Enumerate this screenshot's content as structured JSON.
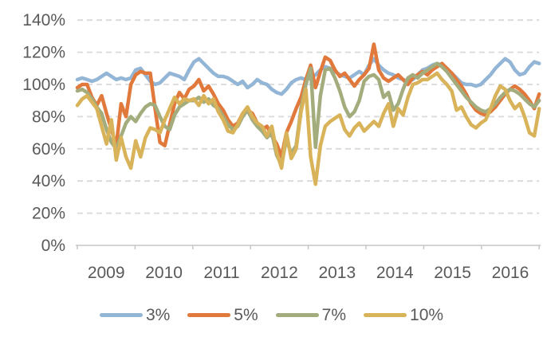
{
  "chart_data": {
    "type": "line",
    "title": "",
    "x_axis": {
      "tick_years": [
        "2009",
        "2010",
        "2011",
        "2012",
        "2013",
        "2014",
        "2015",
        "2016"
      ],
      "points_per_year": 12,
      "n_points": 96
    },
    "y_axis": {
      "tick_labels": [
        "0%",
        "20%",
        "40%",
        "60%",
        "80%",
        "100%",
        "120%",
        "140%"
      ],
      "min": 0,
      "max": 140,
      "step": 20,
      "unit": "%"
    },
    "grid": {
      "show": true,
      "style": "dashed",
      "color": "#D9D9D9"
    },
    "axis_color": "#C6C6C6",
    "label_color": "#595959",
    "legend": {
      "position": "bottom"
    },
    "series": [
      {
        "name": "3%",
        "color": "#93B5D6",
        "values": [
          103,
          104,
          103,
          102,
          103,
          105,
          107,
          105,
          103,
          104,
          103,
          104,
          109,
          110,
          106,
          102,
          100,
          101,
          104,
          107,
          106,
          105,
          103,
          109,
          114,
          116,
          113,
          110,
          107,
          105,
          105,
          104,
          102,
          100,
          102,
          98,
          100,
          103,
          101,
          100,
          97,
          95,
          94,
          97,
          101,
          103,
          104,
          103,
          104,
          106,
          109,
          111,
          110,
          108,
          106,
          105,
          104,
          106,
          108,
          106,
          112,
          116,
          112,
          109,
          107,
          106,
          104,
          103,
          102,
          103,
          106,
          109,
          110,
          112,
          113,
          112,
          110,
          107,
          104,
          101,
          100,
          100,
          99,
          100,
          103,
          106,
          110,
          113,
          116,
          114,
          109,
          106,
          107,
          111,
          114,
          113
        ]
      },
      {
        "name": "5%",
        "color": "#E1793C",
        "values": [
          98,
          100,
          100,
          92,
          87,
          93,
          82,
          72,
          62,
          88,
          80,
          100,
          106,
          108,
          107,
          107,
          85,
          64,
          62,
          75,
          88,
          95,
          91,
          97,
          99,
          103,
          96,
          99,
          94,
          88,
          84,
          78,
          74,
          76,
          82,
          84,
          82,
          76,
          72,
          74,
          68,
          63,
          55,
          70,
          77,
          85,
          92,
          103,
          112,
          98,
          108,
          117,
          115,
          109,
          105,
          107,
          103,
          99,
          103,
          106,
          110,
          125,
          109,
          104,
          102,
          104,
          106,
          103,
          100,
          104,
          106,
          108,
          106,
          109,
          111,
          113,
          110,
          107,
          103,
          99,
          94,
          88,
          84,
          82,
          81,
          83,
          86,
          90,
          94,
          97,
          99,
          97,
          94,
          90,
          85,
          94
        ]
      },
      {
        "name": "7%",
        "color": "#A3AC7D",
        "values": [
          96,
          97,
          95,
          91,
          86,
          82,
          72,
          64,
          60,
          68,
          76,
          80,
          77,
          82,
          86,
          88,
          87,
          80,
          74,
          72,
          81,
          86,
          88,
          90,
          90,
          92,
          89,
          91,
          87,
          85,
          80,
          75,
          72,
          74,
          80,
          84,
          78,
          74,
          71,
          67,
          70,
          56,
          50,
          66,
          57,
          62,
          85,
          100,
          110,
          61,
          93,
          109,
          110,
          104,
          96,
          86,
          80,
          83,
          90,
          102,
          105,
          106,
          103,
          92,
          95,
          84,
          88,
          97,
          104,
          106,
          104,
          107,
          109,
          111,
          113,
          111,
          108,
          104,
          100,
          96,
          92,
          89,
          86,
          84,
          83,
          85,
          88,
          92,
          95,
          97,
          96,
          94,
          91,
          88,
          86,
          90
        ]
      },
      {
        "name": "10%",
        "color": "#D9B35A",
        "values": [
          87,
          91,
          93,
          89,
          85,
          74,
          63,
          78,
          53,
          67,
          55,
          48,
          65,
          55,
          67,
          73,
          72,
          70,
          78,
          85,
          92,
          88,
          91,
          90,
          91,
          87,
          93,
          88,
          91,
          83,
          78,
          71,
          70,
          75,
          82,
          86,
          80,
          76,
          74,
          68,
          74,
          58,
          48,
          70,
          54,
          60,
          83,
          97,
          55,
          38,
          62,
          74,
          77,
          79,
          81,
          72,
          68,
          73,
          76,
          71,
          74,
          77,
          74,
          82,
          88,
          74,
          85,
          81,
          92,
          100,
          101,
          103,
          103,
          105,
          107,
          103,
          100,
          96,
          84,
          86,
          80,
          75,
          73,
          76,
          78,
          85,
          93,
          99,
          97,
          90,
          85,
          88,
          80,
          70,
          68,
          85
        ]
      }
    ]
  }
}
